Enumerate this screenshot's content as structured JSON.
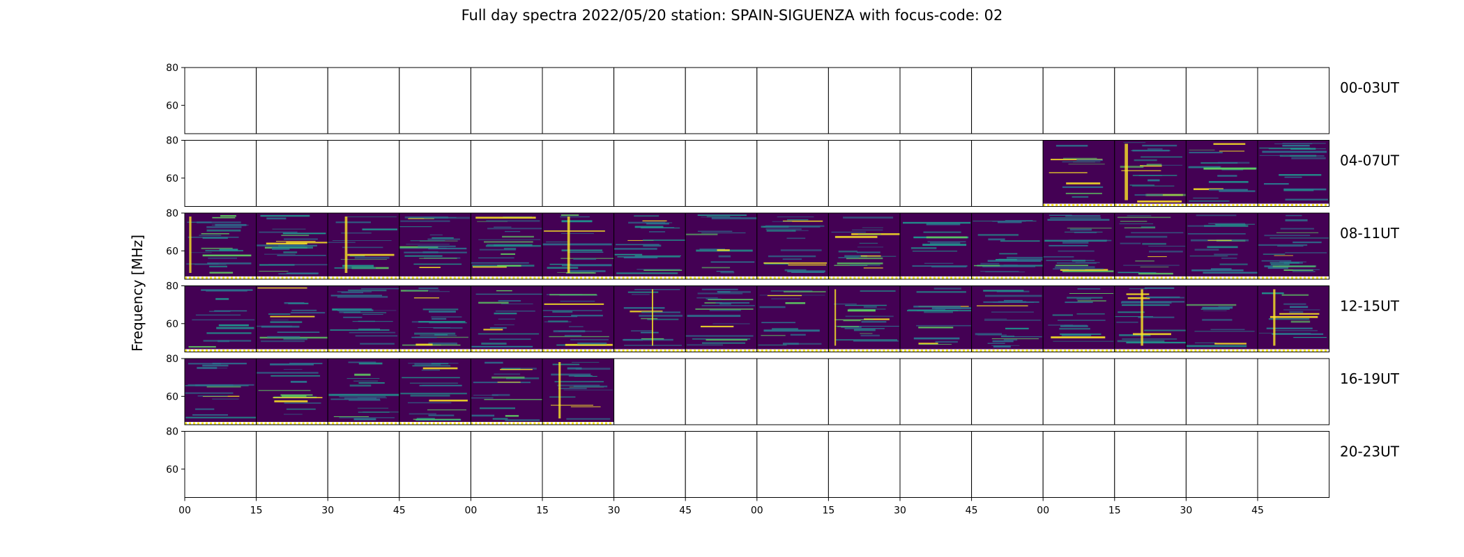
{
  "title": "Full day spectra 2022/05/20 station: SPAIN-SIGUENZA with focus-code: 02",
  "chart_data": {
    "type": "heatmap",
    "title": "Full day spectra 2022/05/20 station: SPAIN-SIGUENZA with focus-code: 02",
    "ylabel": "Frequency [MHz]",
    "xlabel": "",
    "ylim": [
      45,
      80
    ],
    "y_ticks": [
      "80",
      "60"
    ],
    "y_tick_values": [
      80,
      60
    ],
    "x_ticks": [
      "00",
      "15",
      "30",
      "45",
      "00",
      "15",
      "30",
      "45",
      "00",
      "15",
      "30",
      "45",
      "00",
      "15",
      "30",
      "45"
    ],
    "colormap": "viridis",
    "colors": {
      "low": "#440154",
      "mid": "#21918c",
      "high": "#fde725"
    },
    "grid": false,
    "rows": [
      {
        "label": "00-03UT",
        "panels": [
          0,
          0,
          0,
          0,
          0,
          0,
          0,
          0,
          0,
          0,
          0,
          0,
          0,
          0,
          0,
          0
        ]
      },
      {
        "label": "04-07UT",
        "panels": [
          0,
          0,
          0,
          0,
          0,
          0,
          0,
          0,
          0,
          0,
          0,
          0,
          1,
          1,
          1,
          1
        ]
      },
      {
        "label": "08-11UT",
        "panels": [
          1,
          1,
          1,
          1,
          1,
          1,
          1,
          1,
          1,
          1,
          1,
          1,
          1,
          1,
          1,
          1
        ]
      },
      {
        "label": "12-15UT",
        "panels": [
          1,
          1,
          1,
          1,
          1,
          1,
          1,
          1,
          1,
          1,
          1,
          1,
          1,
          1,
          1,
          1
        ]
      },
      {
        "label": "16-19UT",
        "panels": [
          1,
          1,
          1,
          1,
          1,
          1,
          0,
          0,
          0,
          0,
          0,
          0,
          0,
          0,
          0,
          0
        ]
      },
      {
        "label": "20-23UT",
        "panels": [
          0,
          0,
          0,
          0,
          0,
          0,
          0,
          0,
          0,
          0,
          0,
          0,
          0,
          0,
          0,
          0
        ]
      }
    ]
  }
}
